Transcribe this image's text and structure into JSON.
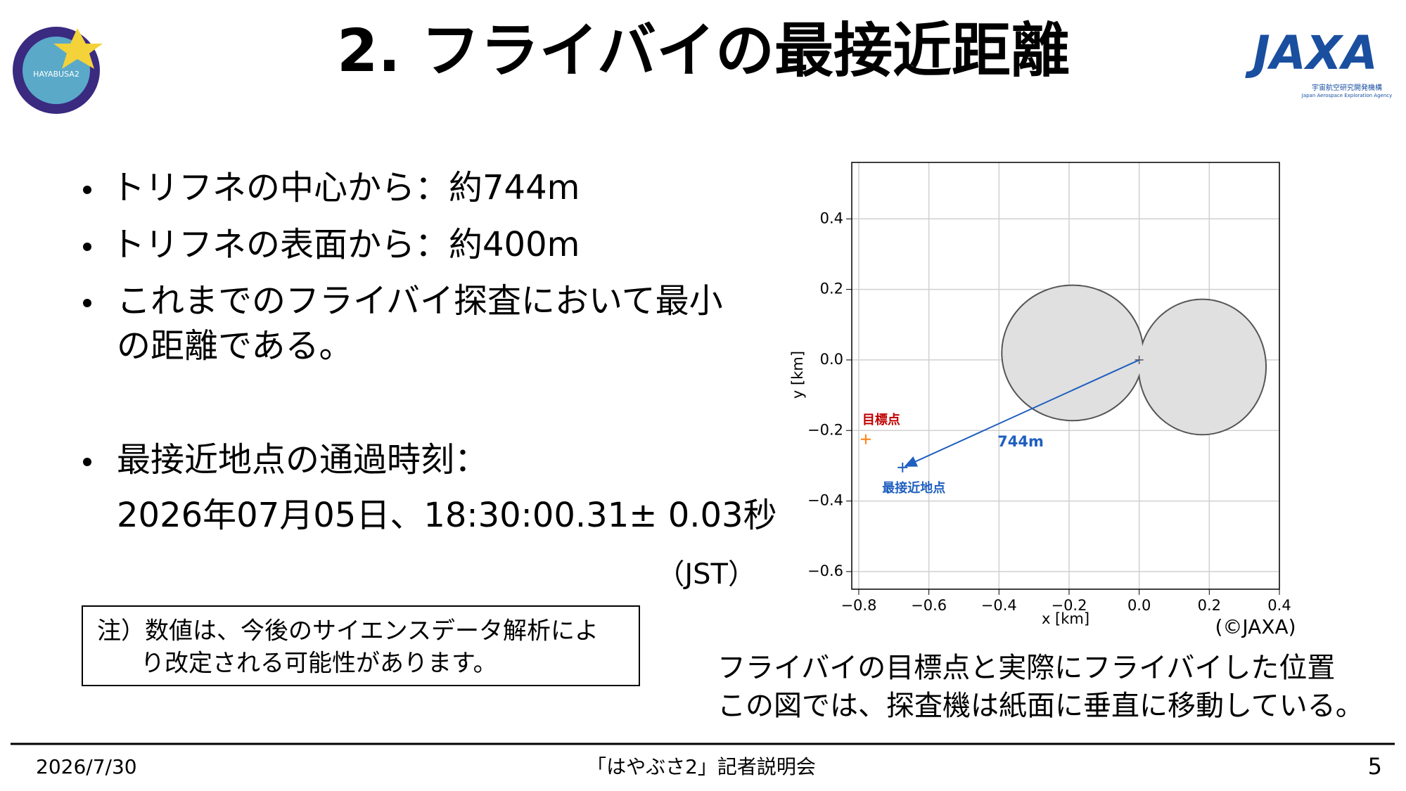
{
  "header": {
    "title": "2. フライバイの最接近距離",
    "logos": {
      "mission": "HAYABUSA2",
      "agency": "JAXA",
      "agency_ja": "宇宙航空研究開発機構",
      "agency_en": "Japan Aerospace Exploration Agency"
    }
  },
  "bullets": [
    {
      "lines": [
        "トリフネの中心から：約744m"
      ]
    },
    {
      "lines": [
        "トリフネの表面から：約400m"
      ]
    },
    {
      "lines": [
        "これまでのフライバイ探査において最小",
        "の距離である。"
      ]
    },
    {
      "lines": [
        "最接近地点の通過時刻：",
        "2026年07月05日、18:30:00.31± 0.03秒"
      ]
    }
  ],
  "timezone": "（JST）",
  "note": {
    "lines": [
      "注）数値は、今後のサイエンスデータ解析によ",
      "り改定される可能性があります。"
    ]
  },
  "caption": {
    "lines": [
      "フライバイの目標点と実際にフライバイした位置",
      "この図では、探査機は紙面に垂直に移動している。"
    ]
  },
  "chart_data": {
    "type": "scatter",
    "xlabel": "x [km]",
    "ylabel": "y [km]",
    "xlim": [
      -0.82,
      0.4
    ],
    "ylim": [
      -0.65,
      0.56
    ],
    "xticks": [
      {
        "value": -0.8,
        "label": "−0.8"
      },
      {
        "value": -0.6,
        "label": "−0.6"
      },
      {
        "value": -0.4,
        "label": "−0.4"
      },
      {
        "value": -0.2,
        "label": "−0.2"
      },
      {
        "value": 0,
        "label": "0.0"
      },
      0.2,
      0.4
    ],
    "yticks": [
      {
        "value": -0.6,
        "label": "−0.6"
      },
      {
        "value": -0.4,
        "label": "−0.4"
      },
      {
        "value": -0.2,
        "label": "−0.2"
      },
      {
        "value": 0,
        "label": "0.0"
      },
      0.2,
      0.4
    ],
    "grid": true,
    "series": [
      {
        "name": "目標点",
        "color": "#ff7f0e",
        "label_color": "#c00000",
        "x": [
          -0.78
        ],
        "values": [
          -0.225
        ]
      },
      {
        "name": "最接近地点",
        "color": "#1f5fbf",
        "label_color": "#1f5fbf",
        "x": [
          -0.675
        ],
        "values": [
          -0.305
        ]
      }
    ],
    "annotation": "744m",
    "source": "(©JAXA)"
  },
  "footer": {
    "date": "2026/7/30",
    "event": "「はやぶさ2」記者説明会",
    "page": "5"
  }
}
